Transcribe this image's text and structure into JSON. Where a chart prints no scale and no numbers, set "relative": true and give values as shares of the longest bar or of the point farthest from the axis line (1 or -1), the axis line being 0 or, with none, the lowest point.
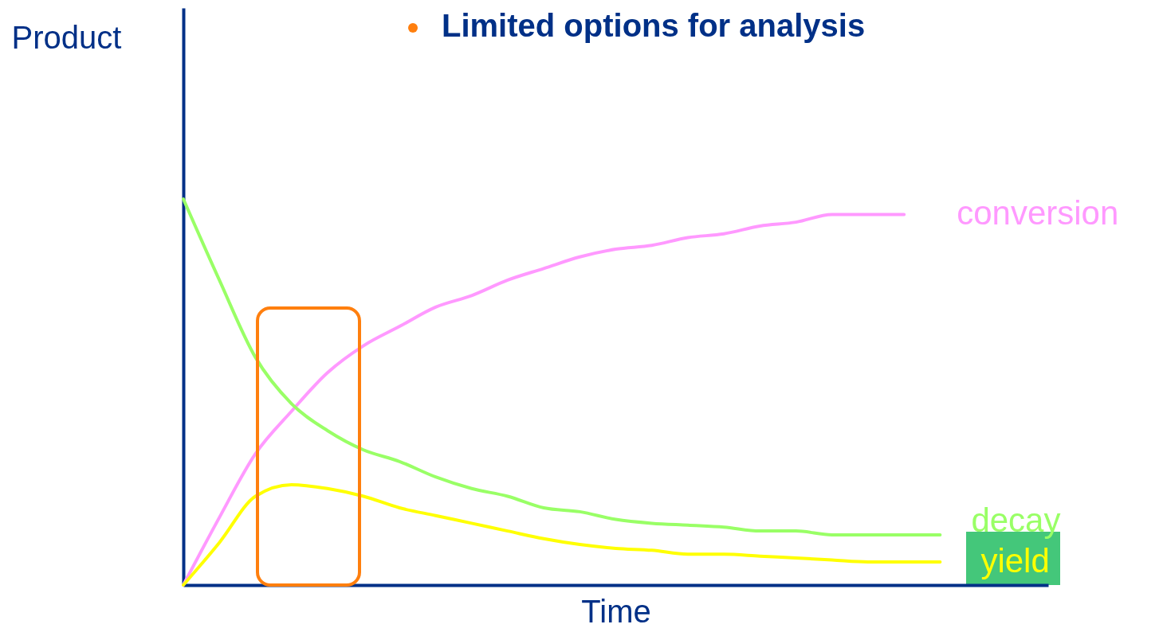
{
  "chart_data": {
    "type": "line",
    "title": "Limited options for analysis",
    "xlabel": "Time",
    "ylabel": "Product",
    "relative": true,
    "grid": false,
    "marker": "none",
    "line_style": "solid",
    "categories": [
      null,
      null,
      null,
      null,
      null,
      null,
      null,
      null,
      null,
      null,
      null,
      null,
      null,
      null,
      null,
      null,
      null,
      null,
      null,
      null,
      null,
      null,
      null,
      null,
      null
    ],
    "series": [
      {
        "name": "conversion",
        "color": "#ff99ff",
        "values": [
          0,
          0.175,
          0.34,
          0.45,
          0.55,
          0.62,
          0.67,
          0.72,
          0.75,
          0.79,
          0.82,
          0.85,
          0.87,
          0.88,
          0.9,
          0.91,
          0.93,
          0.94,
          0.96,
          0.96,
          0.96,
          null,
          null,
          null,
          null
        ]
      },
      {
        "name": "decay",
        "color": "#99ff66",
        "values": [
          1,
          0.79,
          0.59,
          0.47,
          0.4,
          0.35,
          0.32,
          0.28,
          0.25,
          0.23,
          0.2,
          0.19,
          0.17,
          0.16,
          0.155,
          0.15,
          0.14,
          0.14,
          0.13,
          0.13,
          0.13,
          0.13,
          null,
          null,
          null
        ]
      },
      {
        "name": "yield",
        "color": "#ffff00",
        "values": [
          0,
          0.11,
          0.23,
          0.26,
          0.25,
          0.23,
          0.2,
          0.18,
          0.16,
          0.14,
          0.12,
          0.105,
          0.095,
          0.09,
          0.08,
          0.08,
          0.075,
          0.07,
          0.065,
          0.06,
          0.06,
          0.06,
          null,
          null,
          null
        ]
      }
    ]
  }
}
